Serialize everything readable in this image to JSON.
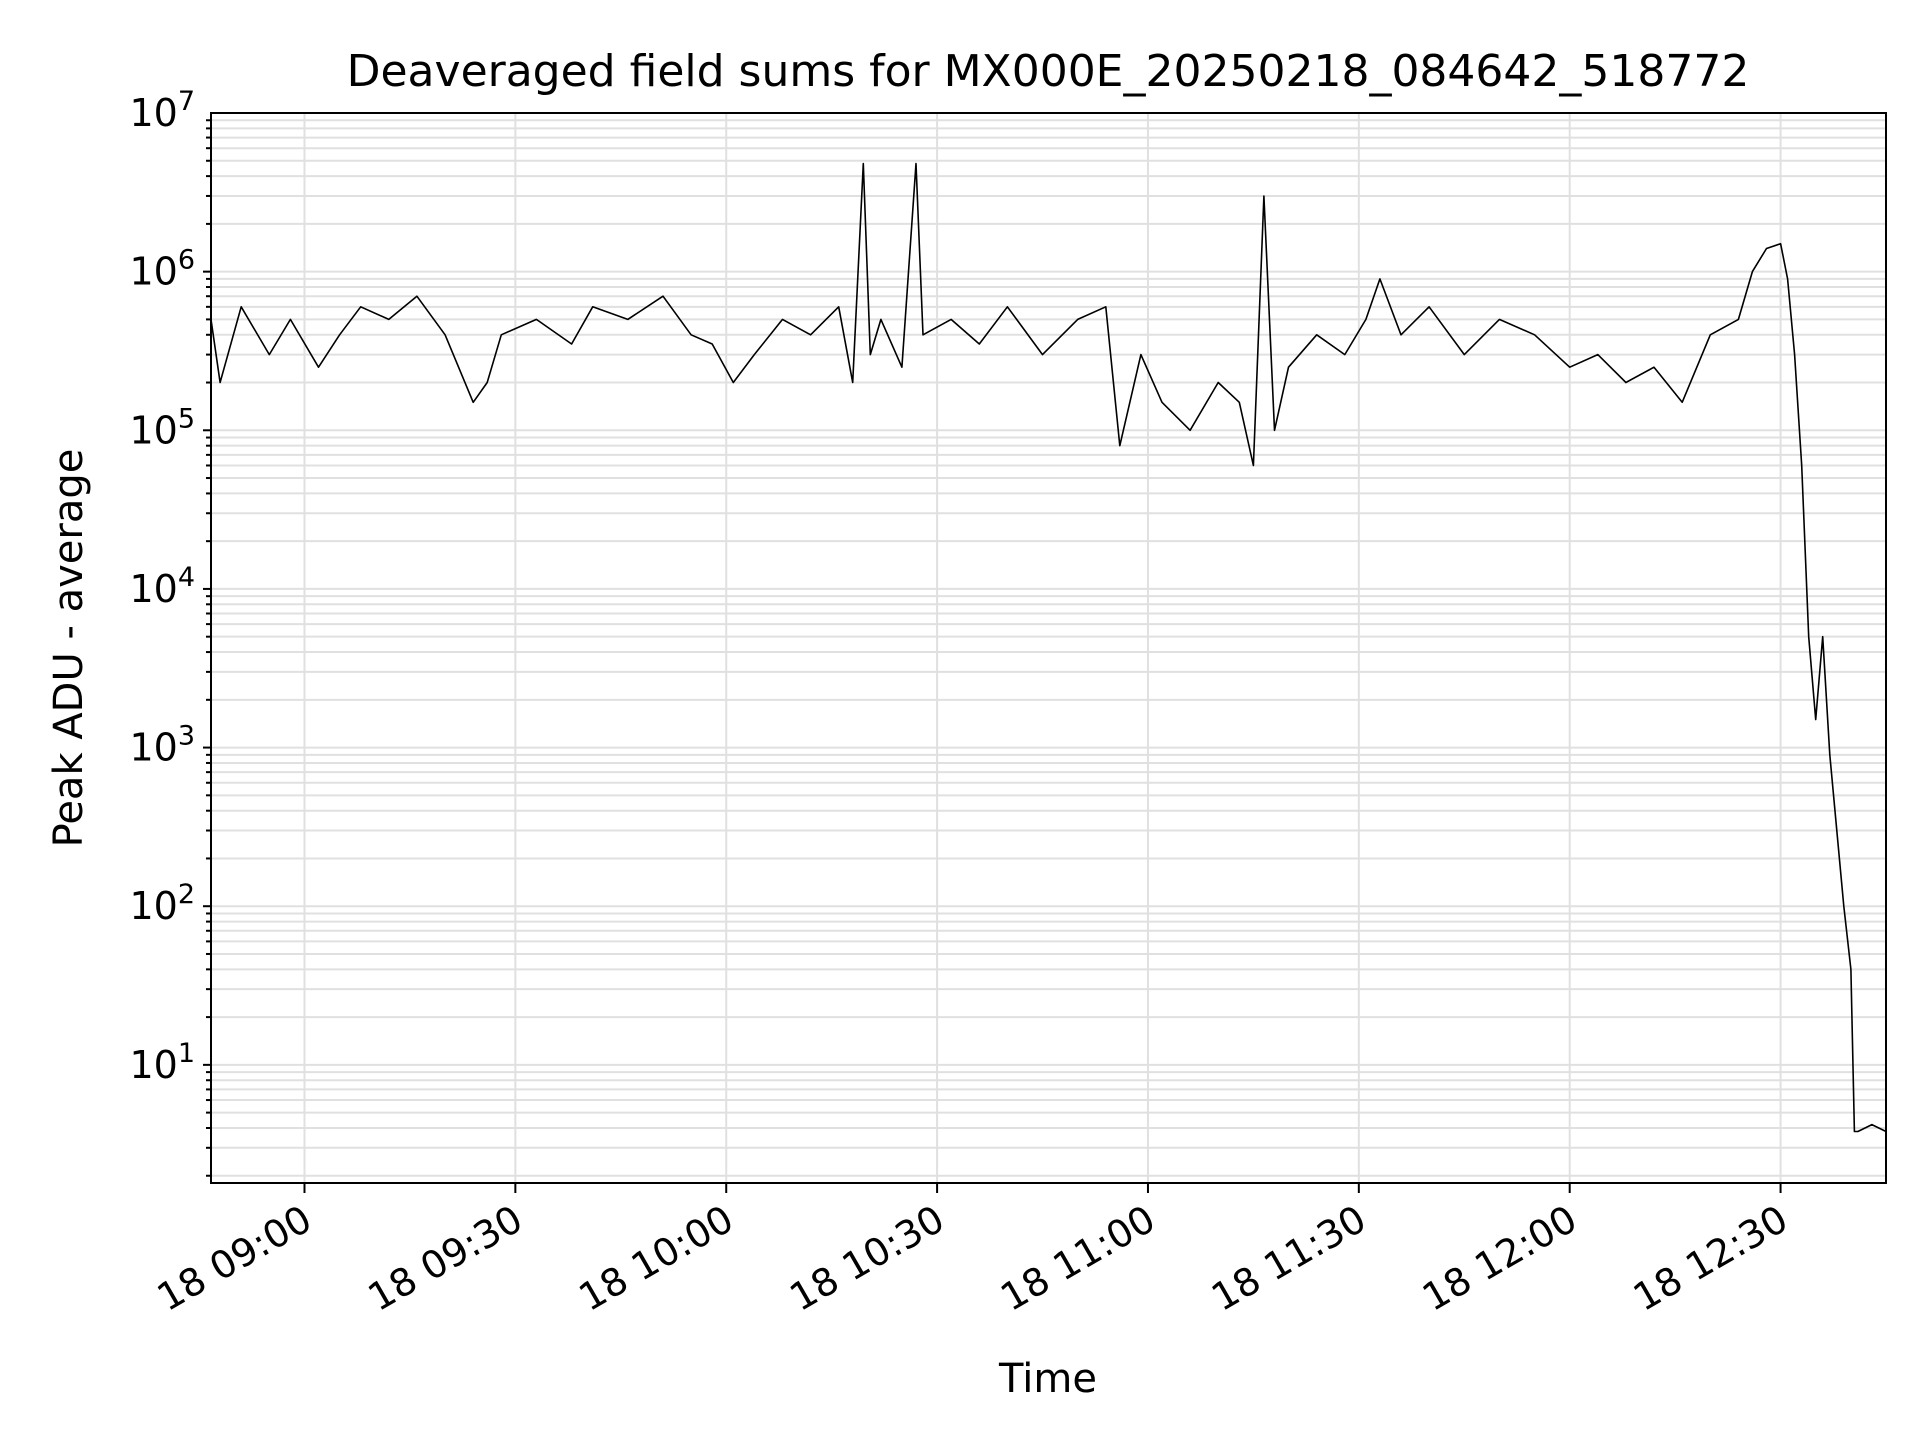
{
  "chart_data": {
    "type": "line",
    "title": "Deaveraged field sums for MX000E_20250218_084642_518772",
    "xlabel": "Time",
    "ylabel": "Peak ADU - average",
    "yscale": "log",
    "ylim": [
      1.8,
      10000000
    ],
    "xlim": [
      "2025-02-18 08:46:42",
      "2025-02-18 12:45:00"
    ],
    "grid": true,
    "grid_minor": true,
    "line_color": "#000000",
    "grid_color": "#e0e0e0",
    "x_ticks": [
      "18 09:00",
      "18 09:30",
      "18 10:00",
      "18 10:30",
      "18 11:00",
      "18 11:30",
      "18 12:00",
      "18 12:30"
    ],
    "y_ticks": [
      {
        "base": "10",
        "exp": "1"
      },
      {
        "base": "10",
        "exp": "2"
      },
      {
        "base": "10",
        "exp": "3"
      },
      {
        "base": "10",
        "exp": "4"
      },
      {
        "base": "10",
        "exp": "5"
      },
      {
        "base": "10",
        "exp": "6"
      },
      {
        "base": "10",
        "exp": "7"
      }
    ],
    "series": [
      {
        "x": [
          "08:46:42",
          "08:48:00",
          "08:51:00",
          "08:55:00",
          "08:58:00",
          "09:02:00",
          "09:05:00",
          "09:08:00",
          "09:12:00",
          "09:16:00",
          "09:20:00",
          "09:24:00",
          "09:26:00",
          "09:28:00",
          "09:33:00",
          "09:38:00",
          "09:41:00",
          "09:46:00",
          "09:51:00",
          "09:55:00",
          "09:58:00",
          "10:01:00",
          "10:04:00",
          "10:08:00",
          "10:12:00",
          "10:16:00",
          "10:18:00",
          "10:19:30",
          "10:20:30",
          "10:22:00",
          "10:25:00",
          "10:27:00",
          "10:28:00",
          "10:32:00",
          "10:36:00",
          "10:40:00",
          "10:45:00",
          "10:50:00",
          "10:54:00",
          "10:56:00",
          "10:59:00",
          "11:02:00",
          "11:06:00",
          "11:10:00",
          "11:13:00",
          "11:15:00",
          "11:16:30",
          "11:18:00",
          "11:20:00",
          "11:24:00",
          "11:28:00",
          "11:31:00",
          "11:33:00",
          "11:36:00",
          "11:40:00",
          "11:45:00",
          "11:50:00",
          "11:55:00",
          "12:00:00",
          "12:04:00",
          "12:08:00",
          "12:12:00",
          "12:16:00",
          "12:20:00",
          "12:24:00",
          "12:26:00",
          "12:28:00",
          "12:30:00",
          "12:31:00",
          "12:32:00",
          "12:33:00",
          "12:34:00",
          "12:35:00",
          "12:36:00",
          "12:37:00",
          "12:38:00",
          "12:39:00",
          "12:40:00",
          "12:40:30",
          "12:41:00",
          "12:43:00",
          "12:45:00"
        ],
        "y": [
          500000,
          200000,
          600000,
          300000,
          500000,
          250000,
          400000,
          600000,
          500000,
          700000,
          400000,
          150000,
          200000,
          400000,
          500000,
          350000,
          600000,
          500000,
          700000,
          400000,
          350000,
          200000,
          300000,
          500000,
          400000,
          600000,
          200000,
          4800000,
          300000,
          500000,
          250000,
          4800000,
          400000,
          500000,
          350000,
          600000,
          300000,
          500000,
          600000,
          80000,
          300000,
          150000,
          100000,
          200000,
          150000,
          60000,
          3000000,
          100000,
          250000,
          400000,
          300000,
          500000,
          900000,
          400000,
          600000,
          300000,
          500000,
          400000,
          250000,
          300000,
          200000,
          250000,
          150000,
          400000,
          500000,
          1000000,
          1400000,
          1500000,
          900000,
          300000,
          60000,
          5000,
          1500,
          5000,
          900,
          300,
          100,
          40,
          3.8,
          3.8,
          4.2,
          3.8
        ]
      }
    ]
  }
}
